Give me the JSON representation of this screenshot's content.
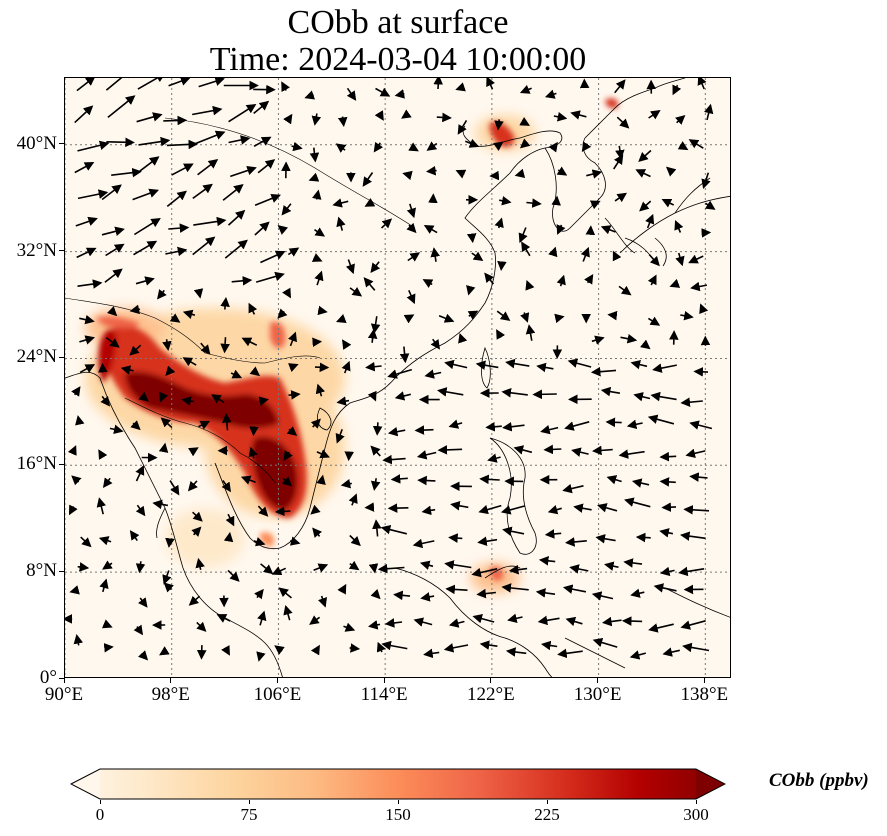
{
  "title": {
    "line1": "CObb at surface",
    "line2": "Time: 2024-03-04 10:00:00"
  },
  "map": {
    "extent": {
      "lon_min": 90,
      "lon_max": 140,
      "lat_min": 0,
      "lat_max": 45
    },
    "lon_ticks": [
      {
        "value": 90,
        "label": "90°E"
      },
      {
        "value": 98,
        "label": "98°E"
      },
      {
        "value": 106,
        "label": "106°E"
      },
      {
        "value": 114,
        "label": "114°E"
      },
      {
        "value": 122,
        "label": "122°E"
      },
      {
        "value": 130,
        "label": "130°E"
      },
      {
        "value": 138,
        "label": "138°E"
      }
    ],
    "lat_ticks": [
      {
        "value": 0,
        "label": "0°"
      },
      {
        "value": 8,
        "label": "8°N"
      },
      {
        "value": 16,
        "label": "16°N"
      },
      {
        "value": 24,
        "label": "24°N"
      },
      {
        "value": 32,
        "label": "32°N"
      },
      {
        "value": 40,
        "label": "40°N"
      }
    ],
    "gridlines": true,
    "wind_vectors": "quiver"
  },
  "colorbar": {
    "label": "CObb (ppbv)",
    "min": 0,
    "max": 300,
    "extend": "both",
    "colormap": "OrRd",
    "ticks": [
      {
        "value": 0,
        "label": "0"
      },
      {
        "value": 75,
        "label": "75"
      },
      {
        "value": 150,
        "label": "150"
      },
      {
        "value": 225,
        "label": "225"
      },
      {
        "value": 300,
        "label": "300"
      }
    ],
    "colors": [
      "#fff7ec",
      "#fee8c8",
      "#fdd49e",
      "#fdbb84",
      "#fc8d59",
      "#ef6548",
      "#d7301f",
      "#b30000",
      "#7f0000"
    ]
  }
}
